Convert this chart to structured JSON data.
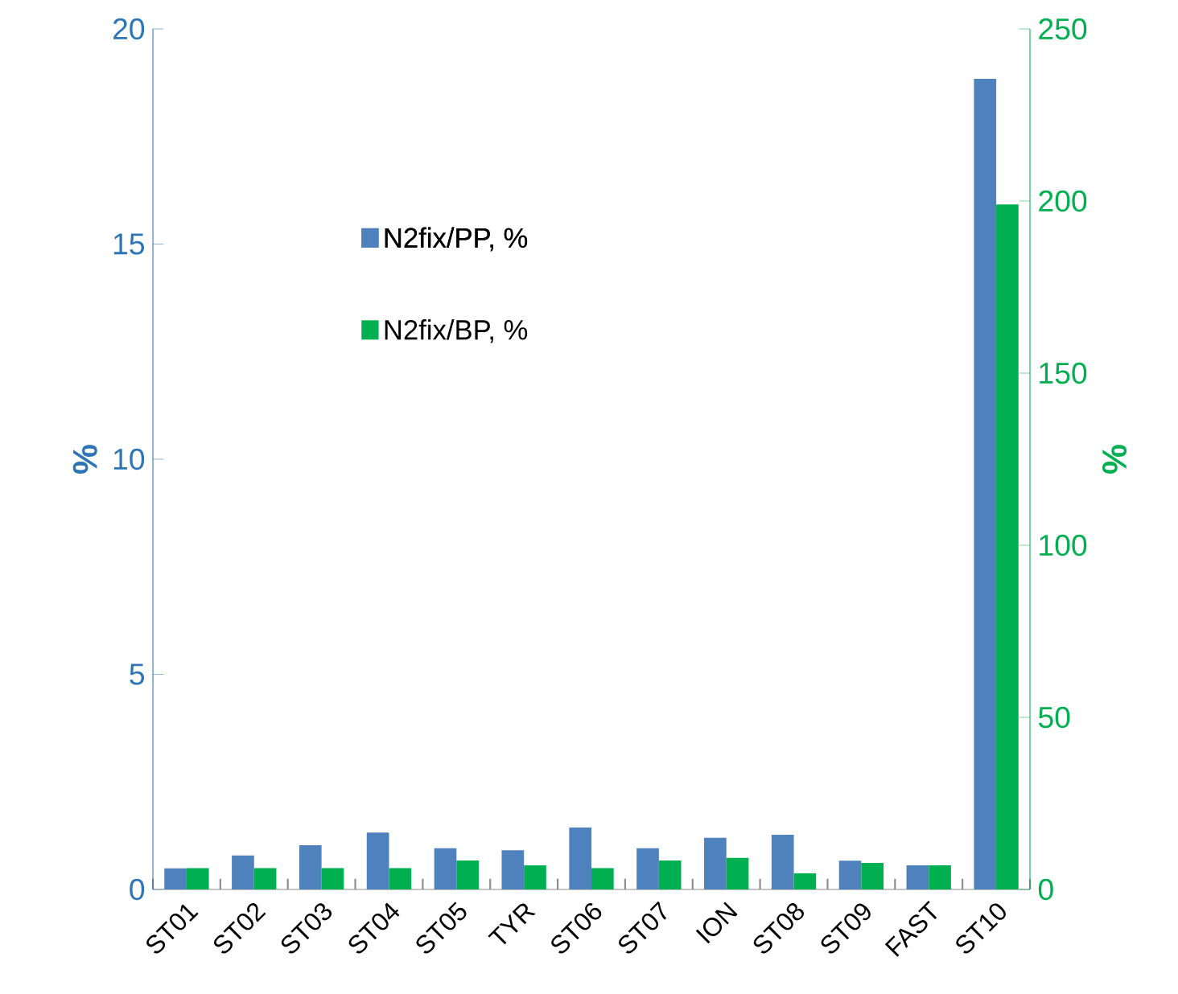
{
  "chart_data": {
    "type": "bar",
    "categories": [
      "ST01",
      "ST02",
      "ST03",
      "ST04",
      "ST05",
      "TYR",
      "ST06",
      "ST07",
      "ION",
      "ST08",
      "ST09",
      "FAST",
      "ST10"
    ],
    "series": [
      {
        "name": "N2fix/PP, %",
        "color": "#4f81bd",
        "values": [
          0.49,
          0.79,
          1.03,
          1.32,
          0.96,
          0.91,
          1.44,
          0.96,
          1.2,
          1.27,
          0.67,
          0.56,
          18.84
        ]
      },
      {
        "name": "N2fix/BP, %",
        "color": "#00b050",
        "axis": "y2",
        "values": [
          6.2,
          6.2,
          6.2,
          6.2,
          8.4,
          7.0,
          6.2,
          8.4,
          9.2,
          4.7,
          7.7,
          7.0,
          199
        ]
      }
    ],
    "ylabel": "%",
    "y2label": "%",
    "ylim": [
      0,
      20
    ],
    "yticks": [
      0,
      5,
      10,
      15,
      20
    ],
    "y2lim": [
      0,
      250
    ],
    "y2ticks": [
      0,
      50,
      100,
      150,
      200,
      250
    ],
    "legend": "top left",
    "grid": false
  }
}
